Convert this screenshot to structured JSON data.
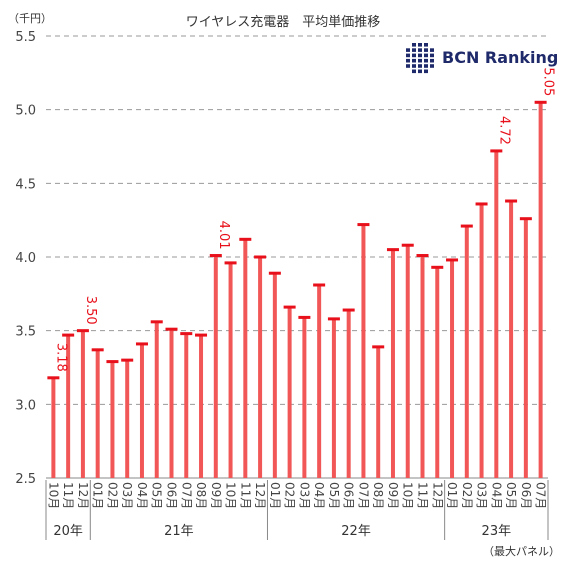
{
  "chart_data": {
    "type": "bar",
    "title": "ワイヤレス充電器　平均単価推移",
    "unit_label": "（千円）",
    "footnote": "（最大パネル）",
    "brand": {
      "text": "BCN Ranking",
      "color": "#1f2a6b"
    },
    "bar_color": "#f25757",
    "cap_color": "#e8101a",
    "label_color": "#e8101a",
    "ylim": [
      2.5,
      5.5
    ],
    "yticks": [
      "2.5",
      "3.0",
      "3.5",
      "4.0",
      "4.5",
      "5.0",
      "5.5"
    ],
    "grid": true,
    "categories": [
      "10月",
      "11月",
      "12月",
      "01月",
      "02月",
      "03月",
      "04月",
      "05月",
      "06月",
      "07月",
      "08月",
      "09月",
      "10月",
      "11月",
      "12月",
      "01月",
      "02月",
      "03月",
      "04月",
      "05月",
      "06月",
      "07月",
      "08月",
      "09月",
      "10月",
      "11月",
      "12月",
      "01月",
      "02月",
      "03月",
      "04月",
      "05月",
      "06月",
      "07月"
    ],
    "values": [
      3.18,
      3.47,
      3.5,
      3.37,
      3.29,
      3.3,
      3.41,
      3.56,
      3.51,
      3.48,
      3.47,
      4.01,
      3.96,
      4.12,
      4.0,
      3.89,
      3.66,
      3.59,
      3.81,
      3.58,
      3.64,
      4.22,
      3.39,
      4.05,
      4.08,
      4.01,
      3.93,
      3.98,
      4.21,
      4.36,
      4.72,
      4.38,
      4.26,
      5.05
    ],
    "data_labels": [
      {
        "index": 0,
        "text": "3.18"
      },
      {
        "index": 2,
        "text": "3.50"
      },
      {
        "index": 11,
        "text": "4.01"
      },
      {
        "index": 30,
        "text": "4.72"
      },
      {
        "index": 33,
        "text": "5.05"
      }
    ],
    "year_groups": [
      {
        "label": "20年",
        "start": 0,
        "end": 2
      },
      {
        "label": "21年",
        "start": 3,
        "end": 14
      },
      {
        "label": "22年",
        "start": 15,
        "end": 26
      },
      {
        "label": "23年",
        "start": 27,
        "end": 33
      }
    ]
  }
}
